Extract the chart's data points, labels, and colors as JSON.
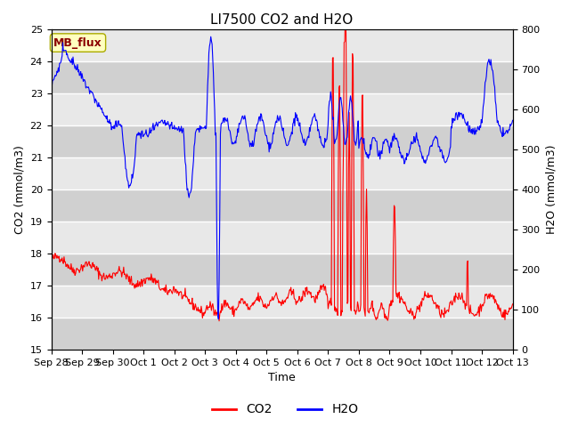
{
  "title": "LI7500 CO2 and H2O",
  "xlabel": "Time",
  "ylabel_left": "CO2 (mmol/m3)",
  "ylabel_right": "H2O (mmol/m3)",
  "co2_ylim": [
    15.0,
    25.0
  ],
  "h2o_ylim": [
    0,
    800
  ],
  "co2_yticks": [
    15.0,
    16.0,
    17.0,
    18.0,
    19.0,
    20.0,
    21.0,
    22.0,
    23.0,
    24.0,
    25.0
  ],
  "h2o_yticks": [
    0,
    100,
    200,
    300,
    400,
    500,
    600,
    700,
    800
  ],
  "xtick_labels": [
    "Sep 28",
    "Sep 29",
    "Sep 30",
    "Oct 1",
    "Oct 2",
    "Oct 3",
    "Oct 4",
    "Oct 5",
    "Oct 6",
    "Oct 7",
    "Oct 8",
    "Oct 9",
    "Oct 10",
    "Oct 11",
    "Oct 12",
    "Oct 13"
  ],
  "annotation_text": "MB_flux",
  "annotation_color": "#8B0000",
  "annotation_bg": "#FFFFC0",
  "bg_color": "#E0E0E0",
  "strip_color_dark": "#D0D0D0",
  "strip_color_light": "#E8E8E8",
  "co2_color": "#FF0000",
  "h2o_color": "#0000FF",
  "title_fontsize": 11,
  "axis_fontsize": 9,
  "tick_fontsize": 8,
  "legend_fontsize": 10
}
